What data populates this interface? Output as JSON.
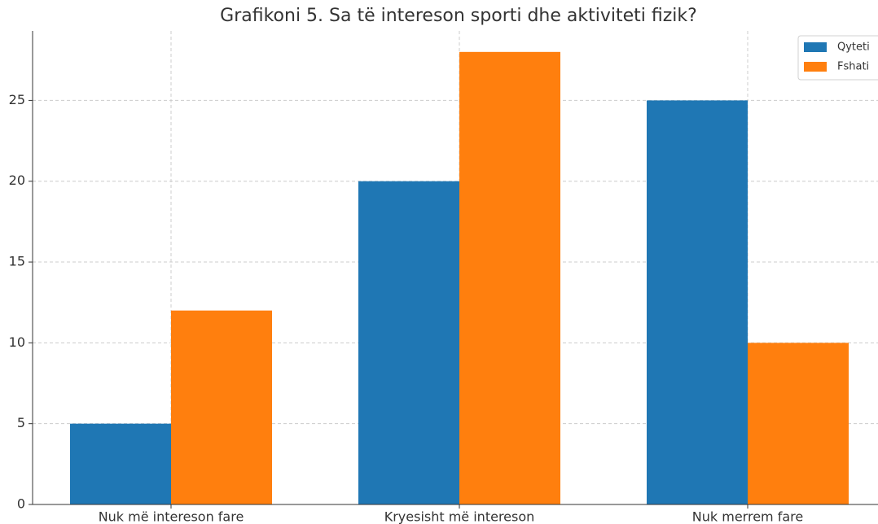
{
  "chart_data": {
    "type": "bar",
    "title": "Grafikoni 5. Sa të intereson sporti dhe aktiviteti fizik?",
    "categories": [
      "Nuk më intereson fare",
      "Kryesisht më intereson",
      "Nuk merrem fare"
    ],
    "series": [
      {
        "name": "Qyteti",
        "color": "#1f77b4",
        "values": [
          5,
          20,
          25
        ]
      },
      {
        "name": "Fshati",
        "color": "#ff7f0e",
        "values": [
          12,
          28,
          10
        ]
      }
    ],
    "ylim": [
      0,
      29.3
    ],
    "yticks": [
      0,
      5,
      10,
      15,
      20,
      25
    ],
    "grid": true,
    "legend": "upper right"
  }
}
